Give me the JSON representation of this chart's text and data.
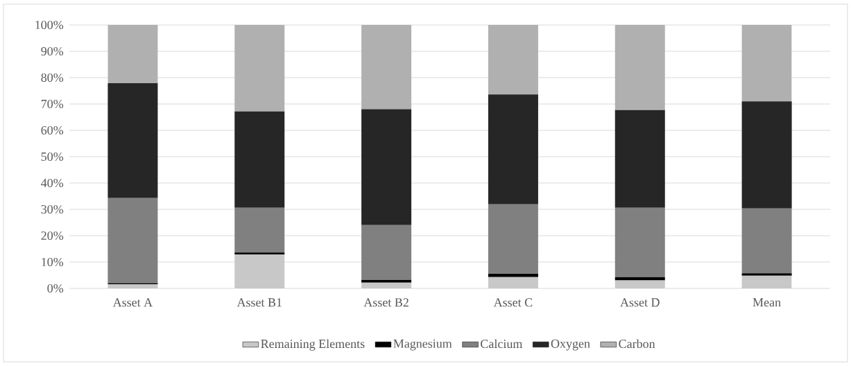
{
  "chart_data": {
    "type": "bar",
    "stacked": true,
    "categories": [
      "Asset A",
      "Asset B1",
      "Asset B2",
      "Asset C",
      "Asset D",
      "Mean"
    ],
    "series": [
      {
        "name": "Remaining Elements",
        "color": "#c8c8c8",
        "values": [
          1.6,
          12.9,
          2.2,
          4.3,
          3.0,
          4.8
        ]
      },
      {
        "name": "Magnesium",
        "color": "#000000",
        "values": [
          0.4,
          0.7,
          1.0,
          1.2,
          1.3,
          0.9
        ]
      },
      {
        "name": "Calcium",
        "color": "#808080",
        "values": [
          32.3,
          17.0,
          20.8,
          26.4,
          26.3,
          24.6
        ]
      },
      {
        "name": "Oxygen",
        "color": "#262626",
        "values": [
          43.6,
          36.6,
          44.0,
          41.7,
          37.1,
          40.7
        ]
      },
      {
        "name": "Carbon",
        "color": "#b0b0b0",
        "values": [
          22.1,
          32.8,
          32.0,
          26.4,
          32.3,
          29.0
        ]
      }
    ],
    "ylim": [
      0,
      100
    ],
    "yticks": [
      {
        "value": 0,
        "label": "0%"
      },
      {
        "value": 10,
        "label": "10%"
      },
      {
        "value": 20,
        "label": "20%"
      },
      {
        "value": 30,
        "label": "30%"
      },
      {
        "value": 40,
        "label": "40%"
      },
      {
        "value": 50,
        "label": "50%"
      },
      {
        "value": 60,
        "label": "60%"
      },
      {
        "value": 70,
        "label": "70%"
      },
      {
        "value": 80,
        "label": "80%"
      },
      {
        "value": 90,
        "label": "90%"
      },
      {
        "value": 100,
        "label": "100%"
      }
    ],
    "grid": "y",
    "legend": "bottom"
  }
}
